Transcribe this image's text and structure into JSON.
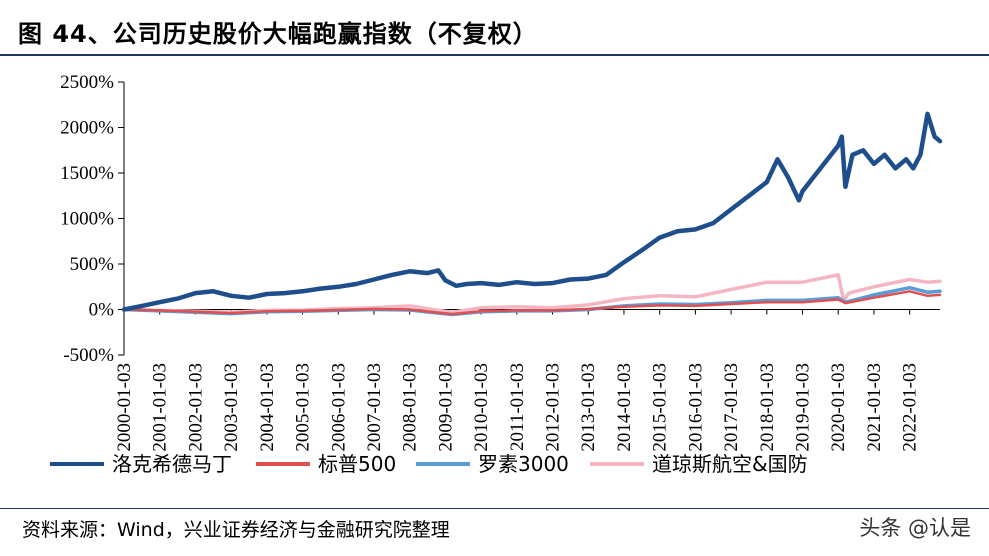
{
  "header": {
    "title": "图 44、公司历史股价大幅跑赢指数（不复权）"
  },
  "footer": {
    "source": "资料来源：Wind，兴业证券经济与金融研究院整理",
    "watermark": "头条 @认是"
  },
  "chart_data": {
    "type": "line",
    "title": "",
    "xlabel": "",
    "ylabel": "",
    "ylim": [
      -500,
      2500
    ],
    "yticks": [
      "2500%",
      "2000%",
      "1500%",
      "1000%",
      "500%",
      "0%",
      "-500%"
    ],
    "ytick_values": [
      2500,
      2000,
      1500,
      1000,
      500,
      0,
      -500
    ],
    "xticks": [
      "2000-01-03",
      "2001-01-03",
      "2002-01-03",
      "2003-01-03",
      "2004-01-03",
      "2005-01-03",
      "2006-01-03",
      "2007-01-03",
      "2008-01-03",
      "2009-01-03",
      "2010-01-03",
      "2011-01-03",
      "2012-01-03",
      "2013-01-03",
      "2014-01-03",
      "2015-01-03",
      "2016-01-03",
      "2017-01-03",
      "2018-01-03",
      "2019-01-03",
      "2020-01-03",
      "2021-01-03",
      "2022-01-03"
    ],
    "x_start": 2000.0,
    "x_end": 2022.85,
    "grid": false,
    "legend": "bottom",
    "series": [
      {
        "name": "洛克希德马丁",
        "color": "#1f4e8c",
        "x": [
          2000.0,
          2000.5,
          2001.0,
          2001.5,
          2002.0,
          2002.5,
          2003.0,
          2003.5,
          2004.0,
          2004.5,
          2005.0,
          2005.5,
          2006.0,
          2006.5,
          2007.0,
          2007.5,
          2008.0,
          2008.5,
          2008.8,
          2009.0,
          2009.3,
          2009.6,
          2010.0,
          2010.5,
          2011.0,
          2011.5,
          2012.0,
          2012.5,
          2013.0,
          2013.5,
          2014.0,
          2014.5,
          2015.0,
          2015.5,
          2016.0,
          2016.5,
          2017.0,
          2017.5,
          2018.0,
          2018.3,
          2018.6,
          2018.9,
          2019.0,
          2019.5,
          2020.0,
          2020.1,
          2020.2,
          2020.4,
          2020.7,
          2021.0,
          2021.3,
          2021.6,
          2021.9,
          2022.1,
          2022.3,
          2022.5,
          2022.7,
          2022.85
        ],
        "values": [
          0,
          40,
          80,
          120,
          180,
          200,
          150,
          130,
          170,
          180,
          200,
          230,
          250,
          280,
          330,
          380,
          420,
          400,
          430,
          320,
          260,
          280,
          290,
          270,
          300,
          280,
          290,
          330,
          340,
          380,
          520,
          650,
          790,
          860,
          880,
          950,
          1100,
          1250,
          1400,
          1650,
          1450,
          1200,
          1300,
          1550,
          1800,
          1900,
          1350,
          1700,
          1750,
          1600,
          1700,
          1550,
          1650,
          1550,
          1700,
          2150,
          1900,
          1850
        ]
      },
      {
        "name": "标普500",
        "color": "#e05050",
        "x": [
          2000.0,
          2001.0,
          2002.0,
          2003.0,
          2004.0,
          2005.0,
          2006.0,
          2007.0,
          2008.0,
          2008.8,
          2009.2,
          2010.0,
          2011.0,
          2012.0,
          2013.0,
          2014.0,
          2015.0,
          2016.0,
          2017.0,
          2018.0,
          2019.0,
          2020.0,
          2020.2,
          2021.0,
          2022.0,
          2022.5,
          2022.85
        ],
        "values": [
          0,
          -10,
          -25,
          -40,
          -20,
          -15,
          -5,
          5,
          0,
          -35,
          -50,
          -20,
          -10,
          -10,
          5,
          30,
          45,
          40,
          60,
          80,
          80,
          110,
          70,
          130,
          200,
          150,
          160
        ]
      },
      {
        "name": "罗素3000",
        "color": "#5b9bd5",
        "x": [
          2000.0,
          2001.0,
          2002.0,
          2003.0,
          2004.0,
          2005.0,
          2006.0,
          2007.0,
          2008.0,
          2008.8,
          2009.2,
          2010.0,
          2011.0,
          2012.0,
          2013.0,
          2014.0,
          2015.0,
          2016.0,
          2017.0,
          2018.0,
          2019.0,
          2020.0,
          2020.2,
          2021.0,
          2022.0,
          2022.5,
          2022.85
        ],
        "values": [
          0,
          -15,
          -30,
          -45,
          -25,
          -20,
          -10,
          0,
          -5,
          -40,
          -55,
          -25,
          -15,
          -15,
          0,
          40,
          60,
          55,
          75,
          100,
          100,
          130,
          80,
          160,
          240,
          190,
          200
        ]
      },
      {
        "name": "道琼斯航空&国防",
        "color": "#f4b6c2",
        "x": [
          2000.0,
          2001.0,
          2002.0,
          2003.0,
          2004.0,
          2005.0,
          2006.0,
          2007.0,
          2008.0,
          2008.8,
          2009.2,
          2010.0,
          2011.0,
          2012.0,
          2013.0,
          2014.0,
          2015.0,
          2016.0,
          2017.0,
          2018.0,
          2019.0,
          2020.0,
          2020.15,
          2020.3,
          2021.0,
          2022.0,
          2022.5,
          2022.85
        ],
        "values": [
          0,
          -10,
          -20,
          -30,
          -10,
          -5,
          10,
          20,
          40,
          -10,
          -30,
          20,
          30,
          20,
          50,
          120,
          150,
          140,
          220,
          300,
          300,
          380,
          100,
          180,
          250,
          330,
          300,
          310
        ]
      }
    ]
  }
}
